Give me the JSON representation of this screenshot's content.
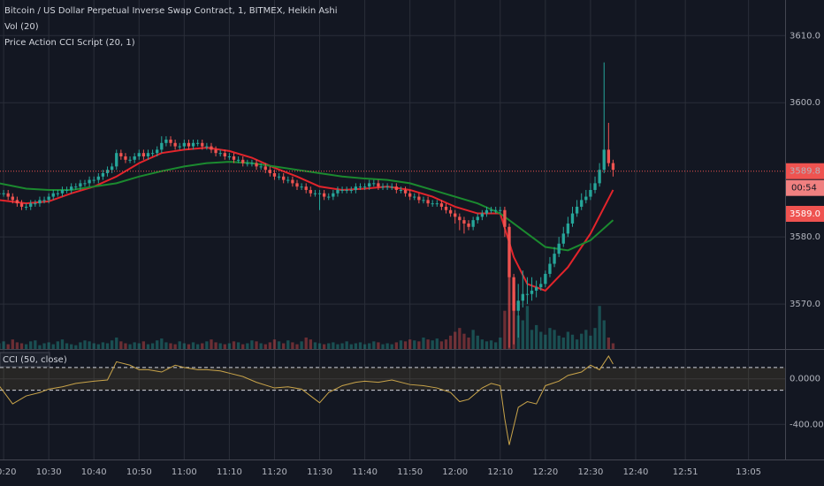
{
  "chart_data": [
    {
      "type": "candlestick",
      "title": "Bitcoin / US Dollar Perpetual Inverse Swap Contract, 1, BITMEX, Heikin Ashi",
      "subtitles": [
        "Vol (20)",
        "Price Action CCI Script (20, 1)"
      ],
      "x": [
        619,
        620,
        621,
        622,
        623,
        624,
        625,
        626,
        627,
        628,
        629,
        630,
        631,
        632,
        633,
        634,
        635,
        636,
        637,
        638,
        639,
        640,
        641,
        642,
        643,
        644,
        645,
        646,
        647,
        648,
        649,
        650,
        651,
        652,
        653,
        654,
        655,
        656,
        657,
        658,
        659,
        660,
        661,
        662,
        663,
        664,
        665,
        666,
        667,
        668,
        669,
        670,
        671,
        672,
        673,
        674,
        675,
        676,
        677,
        678,
        679,
        680,
        681,
        682,
        683,
        684,
        685,
        686,
        687,
        688,
        689,
        690,
        691,
        692,
        693,
        694,
        695,
        696,
        697,
        698,
        699,
        700,
        701,
        702,
        703,
        704,
        705,
        706,
        707,
        708,
        709,
        710,
        711,
        712,
        713,
        714,
        715,
        716,
        717,
        718,
        719,
        720,
        721,
        722,
        723,
        724,
        725,
        726,
        727,
        728,
        729,
        730,
        731,
        732,
        733,
        734,
        735,
        736,
        737,
        738,
        739,
        740,
        741,
        742,
        743,
        744,
        745,
        746,
        747,
        748,
        749,
        750,
        751,
        752,
        753,
        754,
        755
      ],
      "open": [
        3586.5,
        3586.5,
        3586.5,
        3586,
        3585.5,
        3585,
        3584.5,
        3584.5,
        3585,
        3585,
        3585.5,
        3585.5,
        3586,
        3586.5,
        3586.5,
        3587,
        3587,
        3587.5,
        3587.5,
        3588,
        3588,
        3588.5,
        3588.5,
        3589,
        3589.5,
        3590,
        3590.5,
        3592.5,
        3592,
        3591.5,
        3591.5,
        3592,
        3592.5,
        3592,
        3592.5,
        3592.5,
        3593,
        3594,
        3594.5,
        3594,
        3593.5,
        3593.5,
        3594,
        3593.5,
        3594,
        3594,
        3593.5,
        3593.5,
        3593,
        3592.5,
        3592.5,
        3592,
        3592,
        3591.5,
        3591.5,
        3591,
        3591,
        3591,
        3590.5,
        3590.5,
        3590,
        3589.5,
        3589,
        3589,
        3588.5,
        3588.5,
        3588,
        3587.5,
        3587.5,
        3587,
        3586.5,
        3586.5,
        3586.5,
        3586,
        3586,
        3586.5,
        3587,
        3587,
        3587,
        3587,
        3587.5,
        3587.5,
        3587.5,
        3588,
        3588,
        3587.5,
        3587.5,
        3587.5,
        3587.5,
        3587,
        3587,
        3586.5,
        3586,
        3586,
        3585.5,
        3585.5,
        3585,
        3585,
        3585,
        3584.5,
        3584,
        3583.5,
        3583,
        3582.5,
        3582,
        3581.5,
        3582.5,
        3583,
        3583.5,
        3584,
        3584,
        3584,
        3584,
        3581.5,
        3574,
        3569,
        3570.5,
        3571.5,
        3571.5,
        3572,
        3572.5,
        3573,
        3574.5,
        3576,
        3577.5,
        3579,
        3580.5,
        3582,
        3583.5,
        3584.5,
        3585.5,
        3586,
        3587,
        3588,
        3590,
        3593,
        3591
      ],
      "high": [
        3587,
        3587,
        3587,
        3586.5,
        3586,
        3585.5,
        3585,
        3585.5,
        3585.5,
        3586,
        3586,
        3586.5,
        3587,
        3587,
        3587.5,
        3587.5,
        3588,
        3588,
        3588.5,
        3588.5,
        3589,
        3589,
        3589.5,
        3590,
        3590.5,
        3591,
        3593,
        3593,
        3592.5,
        3592,
        3592.5,
        3593,
        3593,
        3593,
        3593,
        3593.5,
        3595,
        3595,
        3595,
        3594.5,
        3594,
        3594.5,
        3594.5,
        3594.5,
        3594.5,
        3594.5,
        3594,
        3594,
        3593.5,
        3593,
        3593,
        3592.5,
        3592.5,
        3592,
        3592,
        3591.5,
        3591.5,
        3591.5,
        3591,
        3591,
        3590.5,
        3590,
        3589.5,
        3589.5,
        3589,
        3589,
        3588.5,
        3588,
        3588,
        3587.5,
        3587,
        3587,
        3587,
        3586.5,
        3587,
        3587.5,
        3587.5,
        3587.5,
        3587.5,
        3588,
        3588,
        3588,
        3588.5,
        3588.5,
        3588.5,
        3588,
        3588,
        3588,
        3588,
        3587.5,
        3587.5,
        3587,
        3586.5,
        3586.5,
        3586,
        3586,
        3585.5,
        3585.5,
        3585.5,
        3585,
        3584.5,
        3584,
        3583.5,
        3583,
        3582.5,
        3583,
        3583.5,
        3584,
        3584.5,
        3584.5,
        3584.5,
        3584.5,
        3584.5,
        3582,
        3574.5,
        3573,
        3575,
        3574,
        3574,
        3573.5,
        3574,
        3575,
        3577,
        3578.5,
        3580,
        3581.5,
        3583,
        3584.5,
        3585.5,
        3586.5,
        3587,
        3588,
        3589,
        3591,
        3606,
        3597,
        3591.5
      ],
      "low": [
        3586,
        3586,
        3585.5,
        3585,
        3584.5,
        3584,
        3584,
        3584,
        3584.5,
        3584.5,
        3585,
        3585,
        3585.5,
        3586,
        3586,
        3586.5,
        3586.5,
        3587,
        3587,
        3587.5,
        3587.5,
        3588,
        3588,
        3588.5,
        3589,
        3589.5,
        3590,
        3591.5,
        3591,
        3591,
        3591,
        3591.5,
        3591.5,
        3591.5,
        3592,
        3592,
        3592.5,
        3593.5,
        3593.5,
        3593,
        3593,
        3593,
        3593,
        3593,
        3593.5,
        3593,
        3593,
        3592.5,
        3592,
        3592,
        3591.5,
        3591.5,
        3591,
        3591,
        3590.5,
        3590.5,
        3590.5,
        3590,
        3590,
        3589.5,
        3589,
        3588.5,
        3588.5,
        3588,
        3588,
        3587.5,
        3587,
        3587,
        3586.5,
        3586,
        3586,
        3584,
        3585.5,
        3585.5,
        3585.5,
        3586,
        3586.5,
        3586.5,
        3586.5,
        3586.5,
        3587,
        3587,
        3587,
        3587.5,
        3587,
        3587,
        3587,
        3587,
        3586.5,
        3586.5,
        3586,
        3585.5,
        3585.5,
        3585,
        3585,
        3584.5,
        3584.5,
        3584.5,
        3584,
        3583.5,
        3583,
        3582,
        3581,
        3580.5,
        3581,
        3581,
        3582,
        3582.5,
        3583,
        3583.5,
        3583.5,
        3583.5,
        3580,
        3563.5,
        3564,
        3565,
        3569.5,
        3570,
        3570.5,
        3571,
        3572,
        3572.5,
        3574,
        3575.5,
        3577,
        3578.5,
        3580,
        3581.5,
        3583,
        3584,
        3585,
        3585.5,
        3586.5,
        3587.5,
        3589.5,
        3590.5,
        3589
      ],
      "close": [
        3586.5,
        3586.5,
        3586,
        3585.5,
        3585,
        3584.5,
        3584.5,
        3585,
        3585,
        3585.5,
        3585.5,
        3586,
        3586.5,
        3586.5,
        3587,
        3587,
        3587.5,
        3587.5,
        3588,
        3588,
        3588.5,
        3588.5,
        3589,
        3589.5,
        3590,
        3590.5,
        3592.5,
        3592,
        3591.5,
        3591.5,
        3592,
        3592.5,
        3592,
        3592.5,
        3592.5,
        3593,
        3594,
        3594.5,
        3594,
        3593.5,
        3593.5,
        3594,
        3593.5,
        3594,
        3594,
        3593.5,
        3593.5,
        3593,
        3592.5,
        3592.5,
        3592,
        3592,
        3591.5,
        3591.5,
        3591,
        3591,
        3591,
        3590.5,
        3590.5,
        3590,
        3589.5,
        3589,
        3589,
        3588.5,
        3588.5,
        3588,
        3587.5,
        3587.5,
        3587,
        3586.5,
        3586.5,
        3586.5,
        3586,
        3586,
        3586.5,
        3587,
        3587,
        3587,
        3587,
        3587.5,
        3587.5,
        3587.5,
        3588,
        3588,
        3587.5,
        3587.5,
        3587.5,
        3587.5,
        3587,
        3587,
        3586.5,
        3586,
        3586,
        3585.5,
        3585.5,
        3585,
        3585,
        3585,
        3584.5,
        3584,
        3583.5,
        3583,
        3582.5,
        3582,
        3581.5,
        3582.5,
        3583,
        3583.5,
        3584,
        3584,
        3584,
        3584,
        3581.5,
        3574,
        3569,
        3570.5,
        3571.5,
        3571.5,
        3572,
        3572.5,
        3573,
        3574.5,
        3576,
        3577.5,
        3579,
        3580.5,
        3582,
        3583.5,
        3584.5,
        3585.5,
        3586,
        3587,
        3588,
        3590,
        3593,
        3591,
        3590
      ],
      "volume": [
        6,
        8,
        5,
        10,
        7,
        6,
        5,
        8,
        9,
        4,
        6,
        7,
        5,
        8,
        10,
        6,
        5,
        4,
        7,
        9,
        8,
        6,
        5,
        7,
        6,
        9,
        12,
        8,
        6,
        5,
        7,
        6,
        8,
        5,
        6,
        9,
        11,
        7,
        6,
        5,
        8,
        6,
        5,
        7,
        5,
        6,
        8,
        10,
        7,
        6,
        5,
        6,
        8,
        7,
        5,
        6,
        9,
        8,
        6,
        5,
        7,
        10,
        8,
        6,
        9,
        7,
        5,
        8,
        12,
        10,
        7,
        6,
        5,
        6,
        7,
        5,
        6,
        8,
        5,
        6,
        7,
        5,
        6,
        8,
        7,
        5,
        6,
        5,
        7,
        9,
        8,
        10,
        9,
        8,
        12,
        10,
        9,
        11,
        8,
        10,
        14,
        18,
        22,
        16,
        12,
        20,
        14,
        10,
        8,
        9,
        7,
        12,
        40,
        110,
        60,
        35,
        30,
        45,
        20,
        25,
        18,
        15,
        22,
        20,
        14,
        12,
        18,
        15,
        10,
        16,
        20,
        14,
        22,
        45,
        30,
        12,
        6
      ],
      "volume_ylim": [
        0,
        120
      ],
      "up_color": "#26a69a",
      "down_color": "#ef5350",
      "lines": [
        {
          "color": "#e3242b",
          "x": [
            619,
            625,
            630,
            635,
            640,
            645,
            650,
            655,
            660,
            665,
            670,
            675,
            680,
            685,
            690,
            695,
            700,
            705,
            710,
            715,
            720,
            725,
            730,
            733,
            736,
            740,
            745,
            750,
            755
          ],
          "values": [
            3585.5,
            3585,
            3585.3,
            3586.5,
            3587.5,
            3589,
            3591,
            3592.5,
            3593,
            3593.3,
            3592.8,
            3591.8,
            3590.3,
            3589,
            3587.5,
            3587,
            3587.2,
            3587.5,
            3587,
            3586,
            3584.5,
            3583.5,
            3583.5,
            3577,
            3573,
            3572,
            3575.5,
            3580.5,
            3587
          ]
        },
        {
          "color": "#1b8a2f",
          "x": [
            619,
            625,
            630,
            635,
            640,
            645,
            650,
            655,
            660,
            665,
            670,
            675,
            680,
            685,
            690,
            695,
            700,
            705,
            710,
            715,
            720,
            725,
            730,
            735,
            740,
            745,
            750,
            755
          ],
          "values": [
            3588,
            3587.2,
            3587,
            3587,
            3587.5,
            3588,
            3589,
            3589.8,
            3590.5,
            3591,
            3591.2,
            3591,
            3590.5,
            3590,
            3589.5,
            3589,
            3588.7,
            3588.5,
            3588,
            3587,
            3586,
            3585,
            3583.5,
            3581,
            3578.5,
            3578,
            3579.5,
            3582.5
          ]
        }
      ],
      "last_price": 3589.8,
      "tags": [
        "00:54",
        "3589.0"
      ],
      "xlim": [
        619.2,
        793.1
      ],
      "ylim": [
        3563.3,
        3615.3
      ],
      "yticks": [
        {
          "value": 3610,
          "label": "3610.0"
        },
        {
          "value": 3600,
          "label": "3600.0"
        },
        {
          "value": 3580,
          "label": "3580.0"
        },
        {
          "value": 3570,
          "label": "3570.0"
        }
      ],
      "grid": true
    },
    {
      "type": "line",
      "title": "CCI (50, close)",
      "x": [
        619,
        622,
        625,
        628,
        630,
        633,
        636,
        640,
        643,
        645,
        648,
        650,
        652,
        655,
        658,
        660,
        663,
        665,
        668,
        670,
        673,
        676,
        680,
        683,
        686,
        688,
        690,
        692,
        695,
        698,
        700,
        703,
        706,
        710,
        713,
        716,
        719,
        721,
        723,
        726,
        728,
        730,
        731,
        732,
        734,
        736,
        738,
        740,
        743,
        745,
        748,
        750,
        752,
        754,
        755
      ],
      "values": [
        -60,
        -220,
        -150,
        -120,
        -90,
        -70,
        -40,
        -20,
        -10,
        150,
        120,
        80,
        80,
        60,
        120,
        100,
        80,
        80,
        70,
        50,
        20,
        -30,
        -80,
        -70,
        -90,
        -150,
        -210,
        -120,
        -60,
        -30,
        -20,
        -30,
        -10,
        -50,
        -60,
        -80,
        -120,
        -200,
        -180,
        -80,
        -40,
        -60,
        -350,
        -580,
        -250,
        -200,
        -220,
        -60,
        -20,
        30,
        60,
        120,
        80,
        200,
        130
      ],
      "color": "#c9a44a",
      "bands": [
        100,
        -100
      ],
      "xlim": [
        619.2,
        793.1
      ],
      "ylim": [
        -708,
        254
      ],
      "yticks": [
        {
          "value": 0,
          "label": "0.0000"
        },
        {
          "value": -400,
          "label": "-400.0000"
        }
      ],
      "xticks": [
        {
          "value": 620,
          "label": "10:20"
        },
        {
          "value": 630,
          "label": "10:30"
        },
        {
          "value": 640,
          "label": "10:40"
        },
        {
          "value": 650,
          "label": "10:50"
        },
        {
          "value": 660,
          "label": "11:00"
        },
        {
          "value": 670,
          "label": "11:10"
        },
        {
          "value": 680,
          "label": "11:20"
        },
        {
          "value": 690,
          "label": "11:30"
        },
        {
          "value": 700,
          "label": "11:40"
        },
        {
          "value": 710,
          "label": "11:50"
        },
        {
          "value": 720,
          "label": "12:00"
        },
        {
          "value": 730,
          "label": "12:10"
        },
        {
          "value": 740,
          "label": "12:20"
        },
        {
          "value": 750,
          "label": "12:30"
        },
        {
          "value": 760,
          "label": "12:40"
        },
        {
          "value": 771,
          "label": "12:51"
        },
        {
          "value": 785,
          "label": "13:05"
        }
      ],
      "grid": true
    }
  ]
}
